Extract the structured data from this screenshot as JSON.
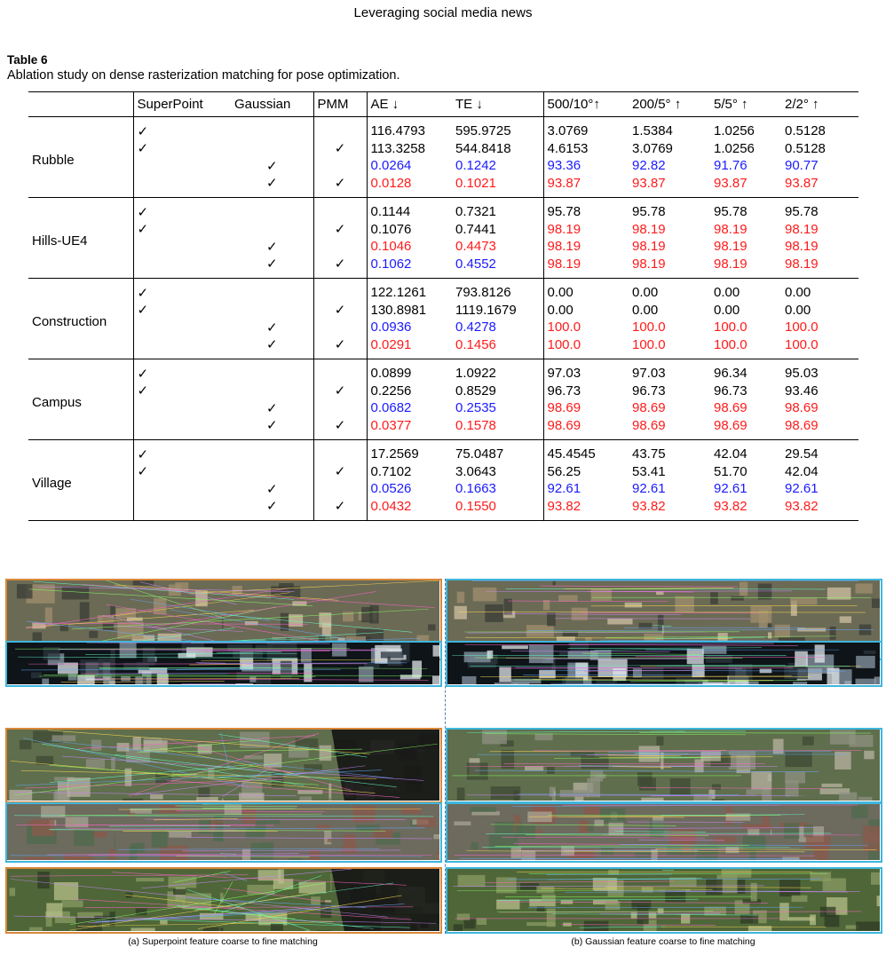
{
  "header": {
    "running_title": "Leveraging social media news"
  },
  "table": {
    "label": "Table 6",
    "caption": "Ablation study on dense rasterization matching for pose optimization.",
    "columns": [
      "",
      "SuperPoint",
      "Gaussian",
      "PMM",
      "AE ↓",
      "TE ↓",
      "500/10°↑",
      "200/5° ↑",
      "5/5° ↑",
      "2/2° ↑"
    ],
    "check_symbol": "✓",
    "groups": [
      {
        "scene": "Rubble",
        "rows": [
          {
            "sp": true,
            "gs": false,
            "pmm": false,
            "color": "black",
            "values": [
              "116.4793",
              "595.9725",
              "3.0769",
              "1.5384",
              "1.0256",
              "0.5128"
            ]
          },
          {
            "sp": true,
            "gs": false,
            "pmm": true,
            "color": "black",
            "values": [
              "113.3258",
              "544.8418",
              "4.6153",
              "3.0769",
              "1.0256",
              "0.5128"
            ]
          },
          {
            "sp": false,
            "gs": true,
            "pmm": false,
            "color": "blue",
            "values": [
              "0.0264",
              "0.1242",
              "93.36",
              "92.82",
              "91.76",
              "90.77"
            ]
          },
          {
            "sp": false,
            "gs": true,
            "pmm": true,
            "color": "red",
            "values": [
              "0.0128",
              "0.1021",
              "93.87",
              "93.87",
              "93.87",
              "93.87"
            ]
          }
        ]
      },
      {
        "scene": "Hills-UE4",
        "rows": [
          {
            "sp": true,
            "gs": false,
            "pmm": false,
            "color": "black",
            "values": [
              "0.1144",
              "0.7321",
              "95.78",
              "95.78",
              "95.78",
              "95.78"
            ]
          },
          {
            "sp": true,
            "gs": false,
            "pmm": true,
            "color": "black",
            "colors": [
              "black",
              "black",
              "red",
              "red",
              "red",
              "red"
            ],
            "values": [
              "0.1076",
              "0.7441",
              "98.19",
              "98.19",
              "98.19",
              "98.19"
            ]
          },
          {
            "sp": false,
            "gs": true,
            "pmm": false,
            "color": "red",
            "values": [
              "0.1046",
              "0.4473",
              "98.19",
              "98.19",
              "98.19",
              "98.19"
            ]
          },
          {
            "sp": false,
            "gs": true,
            "pmm": true,
            "color": "blue",
            "colors": [
              "blue",
              "blue",
              "red",
              "red",
              "red",
              "red"
            ],
            "values": [
              "0.1062",
              "0.4552",
              "98.19",
              "98.19",
              "98.19",
              "98.19"
            ]
          }
        ]
      },
      {
        "scene": "Construction",
        "rows": [
          {
            "sp": true,
            "gs": false,
            "pmm": false,
            "color": "black",
            "values": [
              "122.1261",
              "793.8126",
              "0.00",
              "0.00",
              "0.00",
              "0.00"
            ]
          },
          {
            "sp": true,
            "gs": false,
            "pmm": true,
            "color": "black",
            "values": [
              "130.8981",
              "1119.1679",
              "0.00",
              "0.00",
              "0.00",
              "0.00"
            ]
          },
          {
            "sp": false,
            "gs": true,
            "pmm": false,
            "color": "blue",
            "colors": [
              "blue",
              "blue",
              "red",
              "red",
              "red",
              "red"
            ],
            "values": [
              "0.0936",
              "0.4278",
              "100.0",
              "100.0",
              "100.0",
              "100.0"
            ]
          },
          {
            "sp": false,
            "gs": true,
            "pmm": true,
            "color": "red",
            "values": [
              "0.0291",
              "0.1456",
              "100.0",
              "100.0",
              "100.0",
              "100.0"
            ]
          }
        ]
      },
      {
        "scene": "Campus",
        "rows": [
          {
            "sp": true,
            "gs": false,
            "pmm": false,
            "color": "black",
            "values": [
              "0.0899",
              "1.0922",
              "97.03",
              "97.03",
              "96.34",
              "95.03"
            ]
          },
          {
            "sp": true,
            "gs": false,
            "pmm": true,
            "color": "black",
            "values": [
              "0.2256",
              "0.8529",
              "96.73",
              "96.73",
              "96.73",
              "93.46"
            ]
          },
          {
            "sp": false,
            "gs": true,
            "pmm": false,
            "color": "blue",
            "colors": [
              "blue",
              "blue",
              "red",
              "red",
              "red",
              "red"
            ],
            "values": [
              "0.0682",
              "0.2535",
              "98.69",
              "98.69",
              "98.69",
              "98.69"
            ]
          },
          {
            "sp": false,
            "gs": true,
            "pmm": true,
            "color": "red",
            "values": [
              "0.0377",
              "0.1578",
              "98.69",
              "98.69",
              "98.69",
              "98.69"
            ]
          }
        ]
      },
      {
        "scene": "Village",
        "rows": [
          {
            "sp": true,
            "gs": false,
            "pmm": false,
            "color": "black",
            "values": [
              "17.2569",
              "75.0487",
              "45.4545",
              "43.75",
              "42.04",
              "29.54"
            ]
          },
          {
            "sp": true,
            "gs": false,
            "pmm": true,
            "color": "black",
            "values": [
              "0.7102",
              "3.0643",
              "56.25",
              "53.41",
              "51.70",
              "42.04"
            ]
          },
          {
            "sp": false,
            "gs": true,
            "pmm": false,
            "color": "blue",
            "values": [
              "0.0526",
              "0.1663",
              "92.61",
              "92.61",
              "92.61",
              "92.61"
            ]
          },
          {
            "sp": false,
            "gs": true,
            "pmm": true,
            "color": "red",
            "values": [
              "0.0432",
              "0.1550",
              "93.82",
              "93.82",
              "93.82",
              "93.82"
            ]
          }
        ]
      }
    ]
  },
  "figure": {
    "left_caption": "(a) Superpoint feature coarse to fine matching",
    "right_caption": "(b) Gaussian feature coarse to fine matching",
    "rows": [
      {
        "scene": "construction",
        "left_border": "orange",
        "right_border": "cyan",
        "palette": [
          "#6b6a55",
          "#a08f6e",
          "#3a3c35",
          "#cfc2a3"
        ]
      },
      {
        "scene": "hills",
        "left_border": "cyan",
        "right_border": "cyan",
        "palette": [
          "#0e1418",
          "#8a98a5",
          "#2b353c",
          "#e1e6ea"
        ]
      },
      {
        "scene": "village",
        "left_border": "orange",
        "right_border": "cyan",
        "palette": [
          "#5f6e4c",
          "#8d9180",
          "#3e4a33",
          "#b8b3a2"
        ]
      },
      {
        "scene": "campus",
        "left_border": "cyan",
        "right_border": "cyan",
        "palette": [
          "#6d6a5e",
          "#4e6b4d",
          "#8b5a4b",
          "#a9a595"
        ]
      },
      {
        "scene": "rubble",
        "left_border": "orange",
        "right_border": "cyan",
        "palette": [
          "#4f6638",
          "#8a9b63",
          "#2e3b24",
          "#b7c08a"
        ]
      }
    ]
  }
}
